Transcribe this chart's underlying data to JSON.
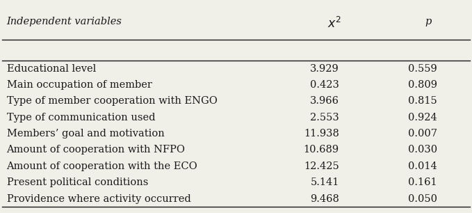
{
  "rows": [
    [
      "Educational level",
      "3.929",
      "0.559"
    ],
    [
      "Main occupation of member",
      "0.423",
      "0.809"
    ],
    [
      "Type of member cooperation with ENGO",
      "3.966",
      "0.815"
    ],
    [
      "Type of communication used",
      "2.553",
      "0.924"
    ],
    [
      "Members’ goal and motivation",
      "11.938",
      "0.007"
    ],
    [
      "Amount of cooperation with NFPO",
      "10.689",
      "0.030"
    ],
    [
      "Amount of cooperation with the ECO",
      "12.425",
      "0.014"
    ],
    [
      "Present political conditions",
      "5.141",
      "0.161"
    ],
    [
      "Providence where activity occurred",
      "9.468",
      "0.050"
    ]
  ],
  "col_labels": [
    "Independent variables",
    "x2",
    "p"
  ],
  "bg_color": "#f0efe8",
  "text_color": "#1a1a1a",
  "line_color": "#1a1a1a",
  "font_size": 10.5,
  "header_font_size": 10.5
}
